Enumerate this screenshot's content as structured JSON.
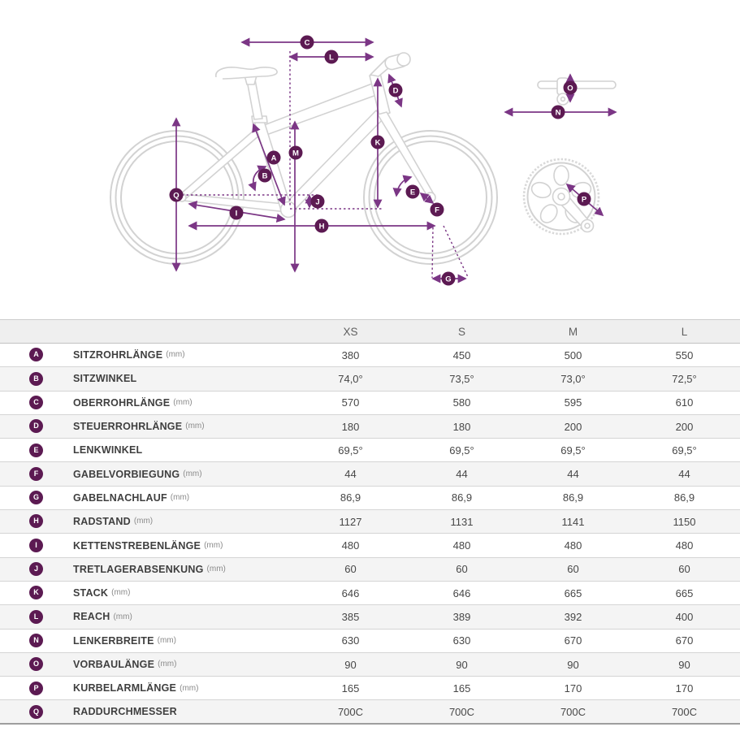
{
  "colors": {
    "accent": "#7b3685",
    "badge": "#5c1a52",
    "bike_outline": "#d2d2d2",
    "header_bg": "#efefef",
    "stripe_bg": "#f4f4f4"
  },
  "diagram": {
    "badges": [
      {
        "letter": "A"
      },
      {
        "letter": "B"
      },
      {
        "letter": "C"
      },
      {
        "letter": "D"
      },
      {
        "letter": "E"
      },
      {
        "letter": "F"
      },
      {
        "letter": "G"
      },
      {
        "letter": "H"
      },
      {
        "letter": "I"
      },
      {
        "letter": "J"
      },
      {
        "letter": "K"
      },
      {
        "letter": "L"
      },
      {
        "letter": "M"
      },
      {
        "letter": "N"
      },
      {
        "letter": "O"
      },
      {
        "letter": "P"
      },
      {
        "letter": "Q"
      }
    ]
  },
  "table": {
    "sizes": [
      "XS",
      "S",
      "M",
      "L"
    ],
    "rows": [
      {
        "letter": "A",
        "label": "SITZROHRLÄNGE",
        "unit": "(mm)",
        "values": [
          "380",
          "450",
          "500",
          "550"
        ]
      },
      {
        "letter": "B",
        "label": "SITZWINKEL",
        "unit": "",
        "values": [
          "74,0°",
          "73,5°",
          "73,0°",
          "72,5°"
        ]
      },
      {
        "letter": "C",
        "label": "OBERROHRLÄNGE",
        "unit": "(mm)",
        "values": [
          "570",
          "580",
          "595",
          "610"
        ]
      },
      {
        "letter": "D",
        "label": "STEUERROHRLÄNGE",
        "unit": "(mm)",
        "values": [
          "180",
          "180",
          "200",
          "200"
        ]
      },
      {
        "letter": "E",
        "label": "LENKWINKEL",
        "unit": "",
        "values": [
          "69,5°",
          "69,5°",
          "69,5°",
          "69,5°"
        ]
      },
      {
        "letter": "F",
        "label": "GABELVORBIEGUNG",
        "unit": "(mm)",
        "values": [
          "44",
          "44",
          "44",
          "44"
        ]
      },
      {
        "letter": "G",
        "label": "GABELNACHLAUF",
        "unit": "(mm)",
        "values": [
          "86,9",
          "86,9",
          "86,9",
          "86,9"
        ]
      },
      {
        "letter": "H",
        "label": "RADSTAND",
        "unit": "(mm)",
        "values": [
          "1127",
          "1131",
          "1141",
          "1150"
        ]
      },
      {
        "letter": "I",
        "label": "KETTENSTREBENLÄNGE",
        "unit": "(mm)",
        "values": [
          "480",
          "480",
          "480",
          "480"
        ]
      },
      {
        "letter": "J",
        "label": "TRETLAGERABSENKUNG",
        "unit": "(mm)",
        "values": [
          "60",
          "60",
          "60",
          "60"
        ]
      },
      {
        "letter": "K",
        "label": "STACK",
        "unit": "(mm)",
        "values": [
          "646",
          "646",
          "665",
          "665"
        ]
      },
      {
        "letter": "L",
        "label": "REACH",
        "unit": "(mm)",
        "values": [
          "385",
          "389",
          "392",
          "400"
        ]
      },
      {
        "letter": "N",
        "label": "LENKERBREITE",
        "unit": "(mm)",
        "values": [
          "630",
          "630",
          "670",
          "670"
        ]
      },
      {
        "letter": "O",
        "label": "VORBAULÄNGE",
        "unit": "(mm)",
        "values": [
          "90",
          "90",
          "90",
          "90"
        ]
      },
      {
        "letter": "P",
        "label": "KURBELARMLÄNGE",
        "unit": "(mm)",
        "values": [
          "165",
          "165",
          "170",
          "170"
        ]
      },
      {
        "letter": "Q",
        "label": "RADDURCHMESSER",
        "unit": "",
        "values": [
          "700C",
          "700C",
          "700C",
          "700C"
        ]
      }
    ]
  }
}
